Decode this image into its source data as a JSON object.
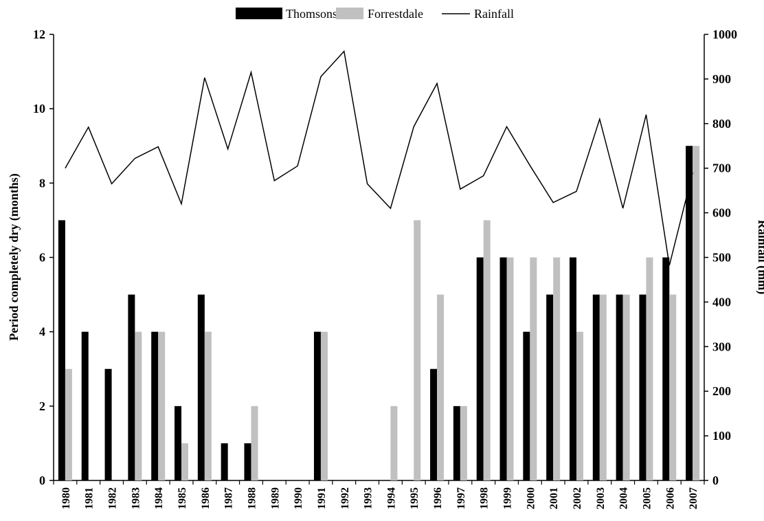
{
  "chart_data": {
    "type": "bar",
    "categories": [
      "1980",
      "1981",
      "1982",
      "1983",
      "1984",
      "1985",
      "1986",
      "1987",
      "1988",
      "1989",
      "1990",
      "1991",
      "1992",
      "1993",
      "1994",
      "1995",
      "1996",
      "1997",
      "1998",
      "1999",
      "2000",
      "2001",
      "2002",
      "2003",
      "2004",
      "2005",
      "2006",
      "2007"
    ],
    "series": [
      {
        "name": "Thomsons",
        "type": "bar",
        "axis": "left",
        "color": "#000000",
        "values": [
          7,
          4,
          3,
          5,
          4,
          2,
          5,
          1,
          1,
          0,
          0,
          4,
          0,
          0,
          0,
          0,
          3,
          2,
          6,
          6,
          4,
          5,
          6,
          5,
          5,
          5,
          6,
          9
        ]
      },
      {
        "name": "Forrestdale",
        "type": "bar",
        "axis": "left",
        "color": "#c0c0c0",
        "values": [
          3,
          0,
          0,
          4,
          4,
          1,
          4,
          0,
          2,
          0,
          0,
          4,
          0,
          0,
          2,
          7,
          5,
          2,
          7,
          6,
          6,
          6,
          4,
          5,
          5,
          6,
          5,
          9
        ]
      },
      {
        "name": "Rainfall",
        "type": "line",
        "axis": "right",
        "color": "#000000",
        "values": [
          700,
          792,
          665,
          722,
          748,
          620,
          903,
          743,
          915,
          672,
          705,
          905,
          962,
          665,
          610,
          793,
          890,
          653,
          683,
          793,
          706,
          623,
          648,
          810,
          610,
          820,
          482,
          690
        ]
      }
    ],
    "ylabel": "Period completely dry (months)",
    "y2label": "Rainfall (mm)",
    "ylim": [
      0,
      12
    ],
    "y2lim": [
      0,
      1000
    ],
    "yticks": [
      "0",
      "2",
      "4",
      "6",
      "8",
      "10",
      "12"
    ],
    "y2ticks": [
      "0",
      "100",
      "200",
      "300",
      "400",
      "500",
      "600",
      "700",
      "800",
      "900",
      "1000"
    ],
    "grid": false,
    "legend_position": "top-center",
    "legend": [
      "Thomsons",
      "Forrestdale",
      "Rainfall"
    ]
  }
}
